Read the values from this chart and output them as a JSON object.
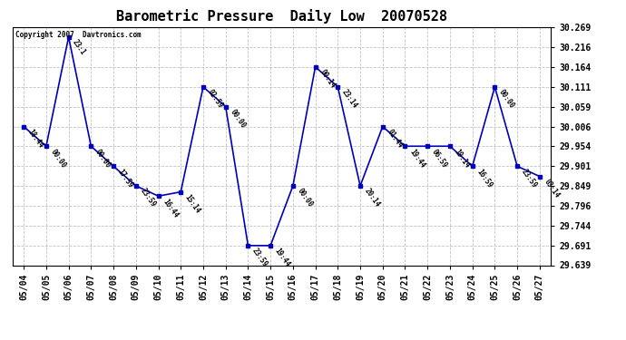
{
  "title": "Barometric Pressure  Daily Low  20070528",
  "copyright": "Copyright 2007  Davtronics.com",
  "ylim_min": 29.639,
  "ylim_max": 30.269,
  "yticks": [
    29.639,
    29.691,
    29.744,
    29.796,
    29.849,
    29.901,
    29.954,
    30.006,
    30.059,
    30.111,
    30.164,
    30.216,
    30.269
  ],
  "line_color": "#0000bb",
  "marker_color": "#0000bb",
  "bg_color": "#ffffff",
  "grid_color": "#bbbbbb",
  "points": [
    [
      "05/04",
      30.006,
      "18:44"
    ],
    [
      "05/05",
      29.954,
      "00:00"
    ],
    [
      "05/06",
      30.243,
      "23:1"
    ],
    [
      "05/07",
      29.954,
      "00:00"
    ],
    [
      "05/08",
      29.901,
      "17:59"
    ],
    [
      "05/09",
      29.849,
      "23:59"
    ],
    [
      "05/10",
      29.822,
      "16:44"
    ],
    [
      "05/11",
      29.833,
      "15:14"
    ],
    [
      "05/12",
      30.111,
      "02:59"
    ],
    [
      "05/13",
      30.059,
      "00:00"
    ],
    [
      "05/14",
      29.691,
      "23:59"
    ],
    [
      "05/15",
      29.691,
      "19:44"
    ],
    [
      "05/16",
      29.849,
      "00:00"
    ],
    [
      "05/17",
      30.164,
      "00:14"
    ],
    [
      "05/18",
      30.111,
      "23:14"
    ],
    [
      "05/19",
      29.849,
      "20:14"
    ],
    [
      "05/20",
      30.006,
      "01:44"
    ],
    [
      "05/21",
      29.954,
      "19:44"
    ],
    [
      "05/22",
      29.954,
      "06:59"
    ],
    [
      "05/23",
      29.954,
      "19:14"
    ],
    [
      "05/24",
      29.901,
      "16:59"
    ],
    [
      "05/25",
      30.111,
      "00:00"
    ],
    [
      "05/26",
      29.901,
      "23:59"
    ],
    [
      "05/27",
      29.874,
      "03:14"
    ]
  ]
}
